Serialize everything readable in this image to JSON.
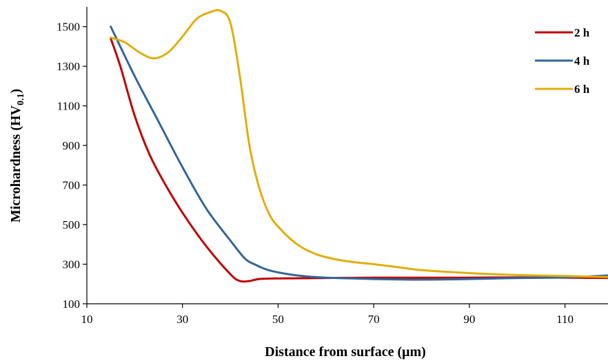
{
  "chart_data": {
    "type": "line",
    "title": "",
    "xlabel": "Distance from surface (μm)",
    "ylabel_main": "Microhardness (HV",
    "ylabel_sub": "0.1",
    "ylabel_close": ")",
    "xlim": [
      10,
      119
    ],
    "ylim": [
      100,
      1600
    ],
    "xticks": [
      10,
      30,
      50,
      70,
      90,
      110
    ],
    "yticks": [
      100,
      300,
      500,
      700,
      900,
      1100,
      1300,
      1500
    ],
    "grid": false,
    "legend_position": "top-right",
    "series": [
      {
        "name": "2 h",
        "color": "#c00000",
        "x": [
          15,
          17,
          20,
          23,
          26,
          30,
          35,
          40,
          42,
          44,
          46,
          50,
          60,
          70,
          80,
          90,
          100,
          110,
          119
        ],
        "y": [
          1440,
          1300,
          1050,
          860,
          720,
          560,
          390,
          250,
          215,
          215,
          225,
          228,
          230,
          232,
          232,
          232,
          233,
          232,
          230
        ]
      },
      {
        "name": "4 h",
        "color": "#336699",
        "x": [
          15,
          20,
          25,
          30,
          35,
          40,
          43,
          45,
          48,
          52,
          56,
          60,
          70,
          78,
          85,
          90,
          100,
          110,
          119
        ],
        "y": [
          1500,
          1250,
          1020,
          790,
          580,
          420,
          330,
          300,
          270,
          250,
          238,
          232,
          225,
          222,
          223,
          225,
          230,
          233,
          243
        ]
      },
      {
        "name": "6 h",
        "color": "#e1ae0b",
        "x": [
          15,
          18,
          21,
          24,
          27,
          30,
          33,
          36,
          38,
          40,
          42,
          44,
          46,
          48,
          50,
          54,
          58,
          62,
          66,
          70,
          75,
          80,
          90,
          100,
          110,
          119
        ],
        "y": [
          1445,
          1420,
          1370,
          1340,
          1370,
          1450,
          1540,
          1575,
          1580,
          1520,
          1250,
          900,
          690,
          560,
          490,
          400,
          350,
          325,
          310,
          300,
          285,
          270,
          255,
          245,
          240,
          235
        ]
      }
    ]
  }
}
